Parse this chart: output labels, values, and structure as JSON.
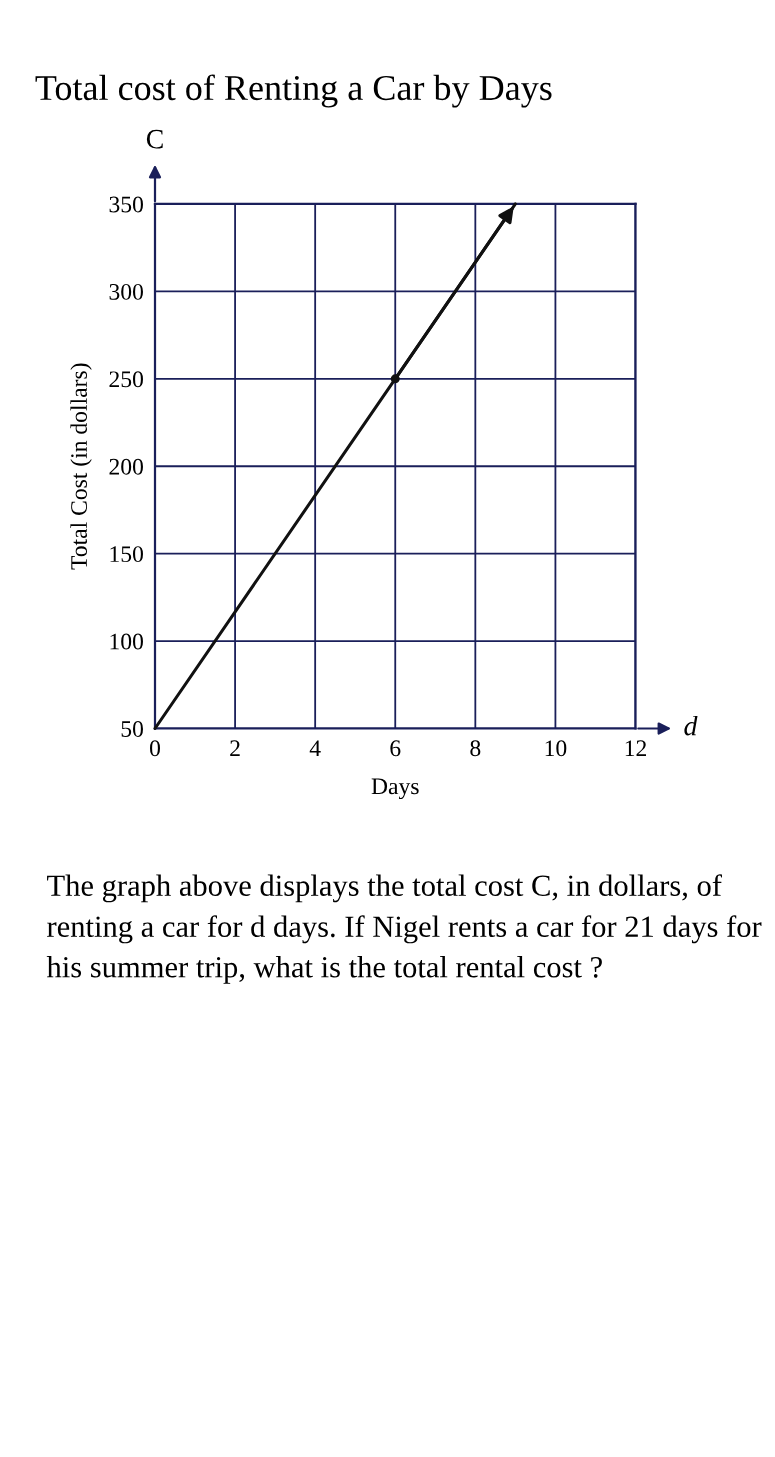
{
  "chart_data": {
    "type": "line",
    "title": "Total cost of Renting a Car by Days",
    "xlabel": "Days",
    "ylabel": "Total Cost (in dollars)",
    "series": [
      {
        "color": "#111111",
        "x": [
          0,
          6,
          9
        ],
        "values": [
          50,
          250,
          350
        ],
        "marker": "none"
      },
      {
        "type": "scatter",
        "color": "#111111",
        "x": [
          6
        ],
        "values": [
          250
        ],
        "marker": "circle"
      }
    ],
    "xlim": [
      0,
      12
    ],
    "ylim": [
      50,
      350
    ],
    "xticks": [
      0,
      2,
      4,
      6,
      8,
      10,
      12
    ],
    "yticks": [
      50,
      100,
      150,
      200,
      250,
      300,
      350
    ],
    "grid": true,
    "annotations": [
      "d",
      "C",
      "The graph above displays the total cost C, in dollars, of renting a car for d days. If Nigel rents a car for 21 days for his summer trip, what is the total rental cost ?"
    ]
  }
}
